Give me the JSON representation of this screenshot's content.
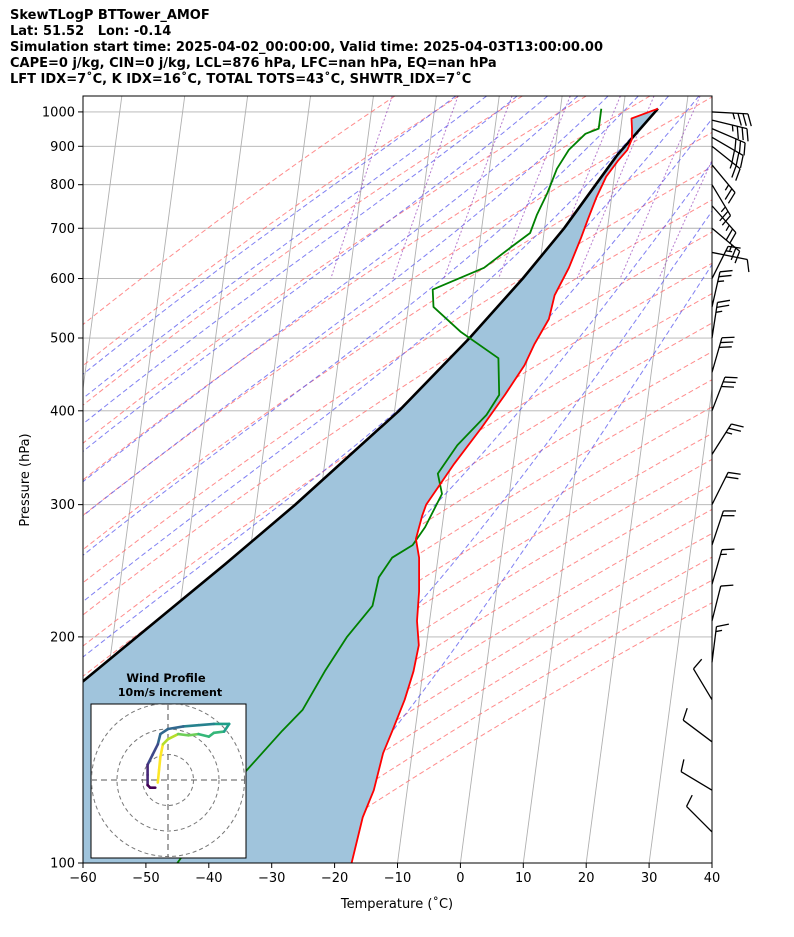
{
  "header": {
    "line1": "SkewTLogP BTTower_AMOF",
    "line2": "Lat: 51.52   Lon: -0.14",
    "line3": "Simulation start time: 2025-04-02_00:00:00, Valid time: 2025-04-03T13:00:00.00",
    "line4": "CAPE=0 j/kg, CIN=0 j/kg, LCL=876 hPa, LFC=nan hPa, EQ=nan hPa",
    "line5": "LFT IDX=7˚C, K IDX=16˚C, TOTAL TOTS=43˚C, SHWTR_IDX=7˚C"
  },
  "colors": {
    "temperature": "#ff0000",
    "dewpoint": "#008000",
    "parcel": "#000000",
    "cape_fill": "#a0c4dc",
    "dry_adiabat": "#ff6666",
    "moist_adiabat": "#5555ee",
    "mixing_ratio": "#9944bb",
    "isotherm": "#b0b0b0"
  },
  "chart_data": [
    {
      "type": "line",
      "subtype": "skew-T log-P",
      "xlabel": "Temperature (˚C)",
      "ylabel": "Pressure (hPa)",
      "xlim": [
        -60,
        40
      ],
      "ylim": [
        1050,
        100
      ],
      "y_scale": "log",
      "x_ticks": [
        "−60",
        "−50",
        "−40",
        "−30",
        "−20",
        "−10",
        "0",
        "10",
        "20",
        "30",
        "40"
      ],
      "y_ticks": [
        "100",
        "200",
        "300",
        "400",
        "500",
        "600",
        "700",
        "800",
        "900",
        "1000"
      ],
      "grid": true,
      "series": [
        {
          "key": "temperature",
          "points": [
            [
              1010,
              15.5
            ],
            [
              980,
              11.5
            ],
            [
              950,
              11.8
            ],
            [
              920,
              12.0
            ],
            [
              890,
              11.5
            ],
            [
              860,
              10.2
            ],
            [
              820,
              8.7
            ],
            [
              770,
              7.6
            ],
            [
              720,
              6.7
            ],
            [
              680,
              6.0
            ],
            [
              620,
              4.7
            ],
            [
              570,
              3.0
            ],
            [
              530,
              2.6
            ],
            [
              490,
              0.8
            ],
            [
              460,
              -0.3
            ],
            [
              420,
              -2.8
            ],
            [
              380,
              -5.8
            ],
            [
              340,
              -9.4
            ],
            [
              300,
              -13.0
            ],
            [
              290,
              -13.4
            ],
            [
              270,
              -13.9
            ],
            [
              255,
              -13.0
            ],
            [
              230,
              -12.3
            ],
            [
              210,
              -12.0
            ],
            [
              195,
              -11.2
            ],
            [
              180,
              -11.5
            ],
            [
              165,
              -12.3
            ],
            [
              150,
              -13.6
            ],
            [
              140,
              -14.6
            ],
            [
              125,
              -15.3
            ],
            [
              115,
              -16.5
            ],
            [
              100,
              -17.3
            ]
          ]
        },
        {
          "key": "dewpoint",
          "points": [
            [
              1010,
              6.5
            ],
            [
              950,
              6.5
            ],
            [
              935,
              4.5
            ],
            [
              890,
              2.2
            ],
            [
              840,
              0.7
            ],
            [
              780,
              -0.3
            ],
            [
              730,
              -1.5
            ],
            [
              690,
              -2.2
            ],
            [
              660,
              -5.0
            ],
            [
              620,
              -8.8
            ],
            [
              580,
              -16.5
            ],
            [
              550,
              -16.0
            ],
            [
              510,
              -11.2
            ],
            [
              470,
              -4.6
            ],
            [
              420,
              -3.7
            ],
            [
              395,
              -5.3
            ],
            [
              360,
              -9.3
            ],
            [
              330,
              -11.8
            ],
            [
              310,
              -10.7
            ],
            [
              280,
              -12.7
            ],
            [
              265,
              -14.3
            ],
            [
              255,
              -17.3
            ],
            [
              240,
              -19.0
            ],
            [
              220,
              -19.4
            ],
            [
              200,
              -22.8
            ],
            [
              180,
              -25.6
            ],
            [
              160,
              -28.3
            ],
            [
              150,
              -31.1
            ],
            [
              130,
              -36.8
            ],
            [
              100,
              -45.0
            ]
          ]
        },
        {
          "key": "parcel",
          "points": [
            [
              1010,
              15.5
            ],
            [
              876,
              10.0
            ],
            [
              800,
              7.2
            ],
            [
              700,
              3.1
            ],
            [
              600,
              -2.4
            ],
            [
              500,
              -9.6
            ],
            [
              400,
              -19.3
            ],
            [
              300,
              -33.8
            ],
            [
              250,
              -43.7
            ],
            [
              200,
              -56.2
            ],
            [
              150,
              -72.3
            ],
            [
              100,
              -95.0
            ]
          ]
        }
      ],
      "wind_barbs": [
        {
          "p": 1000,
          "u": -36,
          "v": 2
        },
        {
          "p": 975,
          "u": -33,
          "v": 8
        },
        {
          "p": 950,
          "u": -28,
          "v": 12
        },
        {
          "p": 925,
          "u": -24,
          "v": 14
        },
        {
          "p": 900,
          "u": -20,
          "v": 16
        },
        {
          "p": 850,
          "u": -15,
          "v": 18
        },
        {
          "p": 800,
          "u": -12,
          "v": 20
        },
        {
          "p": 750,
          "u": -16,
          "v": 18
        },
        {
          "p": 700,
          "u": -18,
          "v": 15
        },
        {
          "p": 650,
          "u": -10,
          "v": 2
        },
        {
          "p": 600,
          "u": -6,
          "v": -12
        },
        {
          "p": 550,
          "u": -5,
          "v": -22
        },
        {
          "p": 500,
          "u": -4,
          "v": -26
        },
        {
          "p": 450,
          "u": -8,
          "v": -28
        },
        {
          "p": 400,
          "u": -10,
          "v": -26
        },
        {
          "p": 350,
          "u": -14,
          "v": -22
        },
        {
          "p": 300,
          "u": -10,
          "v": -20
        },
        {
          "p": 265,
          "u": -6,
          "v": -18
        },
        {
          "p": 235,
          "u": -4,
          "v": -14
        },
        {
          "p": 210,
          "u": -3,
          "v": -12
        },
        {
          "p": 185,
          "u": -2,
          "v": -16
        },
        {
          "p": 165,
          "u": 6,
          "v": -10
        },
        {
          "p": 145,
          "u": 8,
          "v": -6
        },
        {
          "p": 125,
          "u": 10,
          "v": -6
        },
        {
          "p": 110,
          "u": 8,
          "v": -8
        }
      ]
    },
    {
      "type": "line",
      "subtype": "hodograph",
      "title": "Wind Profile",
      "subtitle": "10m/s increment",
      "rings": [
        10,
        20,
        30
      ],
      "points": [
        [
          -4,
          -1
        ],
        [
          -3.5,
          4
        ],
        [
          -3,
          9
        ],
        [
          -2,
          14
        ],
        [
          0,
          16
        ],
        [
          4,
          18
        ],
        [
          8,
          17.5
        ],
        [
          12,
          18
        ],
        [
          16,
          17
        ],
        [
          18,
          18.5
        ],
        [
          22,
          19
        ],
        [
          24,
          22
        ],
        [
          18,
          22
        ],
        [
          12,
          21.5
        ],
        [
          6,
          21
        ],
        [
          0,
          20
        ],
        [
          -3,
          18
        ],
        [
          -4,
          14
        ],
        [
          -6,
          10
        ],
        [
          -8,
          6
        ],
        [
          -8,
          2
        ],
        [
          -8,
          -2
        ],
        [
          -7,
          -3
        ],
        [
          -5,
          -3
        ]
      ]
    }
  ]
}
